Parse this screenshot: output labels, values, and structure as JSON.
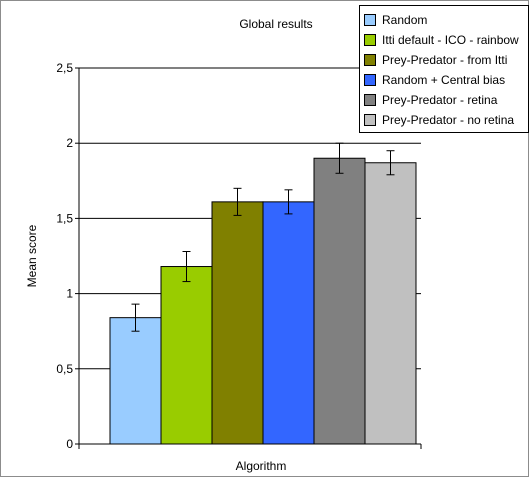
{
  "chart_data": {
    "type": "bar",
    "title": "Global results",
    "xlabel": "Algorithm",
    "ylabel": "Mean score",
    "ylim": [
      0,
      2.5
    ],
    "yticks": [
      "0",
      "0,5",
      "1",
      "1,5",
      "2",
      "2,5"
    ],
    "grid": true,
    "legend_position": "top-right",
    "series": [
      {
        "name": "Random",
        "value": 0.84,
        "error": 0.09,
        "color": "#99ccff"
      },
      {
        "name": "Itti default - ICO - rainbow",
        "value": 1.18,
        "error": 0.1,
        "color": "#99cc00"
      },
      {
        "name": "Prey-Predator - from Itti",
        "value": 1.61,
        "error": 0.09,
        "color": "#808000"
      },
      {
        "name": "Random + Central bias",
        "value": 1.61,
        "error": 0.08,
        "color": "#3366ff"
      },
      {
        "name": "Prey-Predator - retina",
        "value": 1.9,
        "error": 0.1,
        "color": "#808080"
      },
      {
        "name": "Prey-Predator - no retina",
        "value": 1.87,
        "error": 0.08,
        "color": "#c0c0c0"
      }
    ]
  }
}
